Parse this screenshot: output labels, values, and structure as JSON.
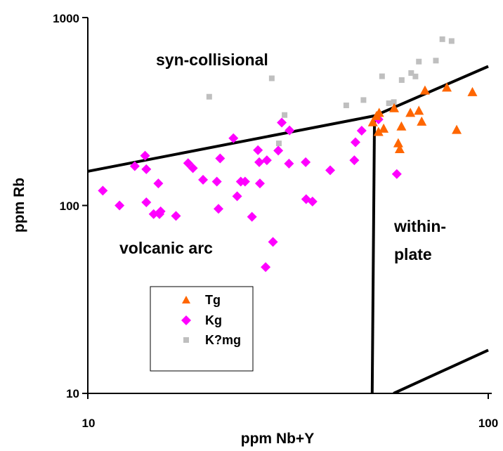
{
  "chart_data": {
    "type": "scatter",
    "x_scale": "log",
    "y_scale": "log",
    "xlabel": "ppm Nb+Y",
    "ylabel": "ppm Rb",
    "xlim": [
      10,
      100
    ],
    "ylim": [
      10,
      1000
    ],
    "x_ticks": [
      "10",
      "100"
    ],
    "y_ticks": [
      "10",
      "100",
      "1000"
    ],
    "grid": false,
    "legend_position": "lower-left",
    "field_labels": {
      "syn_collisional": "syn-collisional",
      "volcanic_arc": "volcanic arc",
      "within_plate_1": "within-",
      "within_plate_2": "plate"
    },
    "boundaries": [
      {
        "name": "VAG-syn-COLG boundary",
        "points": [
          [
            10,
            152
          ],
          [
            52,
            300
          ],
          [
            100,
            550
          ]
        ]
      },
      {
        "name": "WPG boundary",
        "points": [
          [
            52,
            300
          ],
          [
            51.3,
            10
          ]
        ]
      },
      {
        "name": "ORG boundary",
        "points": [
          [
            58,
            10
          ],
          [
            100,
            17
          ]
        ]
      }
    ],
    "series": [
      {
        "name": "Tg",
        "marker": "triangle",
        "color": "#ff6600",
        "points": [
          [
            51.5,
            278
          ],
          [
            52.6,
            300
          ],
          [
            53.2,
            247
          ],
          [
            54.8,
            257
          ],
          [
            58.2,
            330
          ],
          [
            59.6,
            215
          ],
          [
            60.7,
            264
          ],
          [
            63.9,
            312
          ],
          [
            67.1,
            320
          ],
          [
            68.2,
            280
          ],
          [
            69.5,
            410
          ],
          [
            78.8,
            425
          ],
          [
            83.4,
            253
          ],
          [
            91.3,
            402
          ],
          [
            60.1,
            200
          ],
          [
            53.4,
            312
          ]
        ]
      },
      {
        "name": "Kg",
        "marker": "diamond",
        "color": "#ff00ff",
        "points": [
          [
            10.9,
            120
          ],
          [
            12.0,
            100
          ],
          [
            13.1,
            162
          ],
          [
            13.9,
            184
          ],
          [
            14.0,
            156
          ],
          [
            14.0,
            104
          ],
          [
            14.6,
            90
          ],
          [
            15.1,
            90
          ],
          [
            15.0,
            131
          ],
          [
            15.2,
            93
          ],
          [
            16.6,
            88
          ],
          [
            17.8,
            168
          ],
          [
            18.3,
            158
          ],
          [
            19.4,
            137
          ],
          [
            21.0,
            134
          ],
          [
            21.2,
            96
          ],
          [
            21.4,
            178
          ],
          [
            23.1,
            228
          ],
          [
            23.6,
            112
          ],
          [
            24.1,
            134
          ],
          [
            24.7,
            134
          ],
          [
            25.7,
            87
          ],
          [
            26.6,
            197
          ],
          [
            26.8,
            170
          ],
          [
            26.9,
            131
          ],
          [
            28.0,
            174
          ],
          [
            27.8,
            47
          ],
          [
            29.0,
            64
          ],
          [
            29.9,
            196
          ],
          [
            30.5,
            276
          ],
          [
            31.9,
            251
          ],
          [
            31.8,
            167
          ],
          [
            35.0,
            170
          ],
          [
            35.1,
            108
          ],
          [
            36.4,
            105
          ],
          [
            40.3,
            154
          ],
          [
            46.6,
            217
          ],
          [
            48.3,
            250
          ],
          [
            46.3,
            174
          ],
          [
            59.1,
            147
          ],
          [
            53.2,
            287
          ]
        ]
      },
      {
        "name": "K?mg",
        "marker": "square",
        "color": "#bfbfbf",
        "points": [
          [
            20.1,
            379
          ],
          [
            28.8,
            475
          ],
          [
            30.0,
            214
          ],
          [
            31.0,
            303
          ],
          [
            44.2,
            341
          ],
          [
            48.8,
            364
          ],
          [
            54.3,
            487
          ],
          [
            56.5,
            350
          ],
          [
            58.1,
            355
          ],
          [
            60.8,
            465
          ],
          [
            64.2,
            507
          ],
          [
            65.8,
            486
          ],
          [
            67.1,
            583
          ],
          [
            74.0,
            590
          ],
          [
            76.8,
            767
          ],
          [
            81.0,
            750
          ]
        ]
      }
    ]
  }
}
